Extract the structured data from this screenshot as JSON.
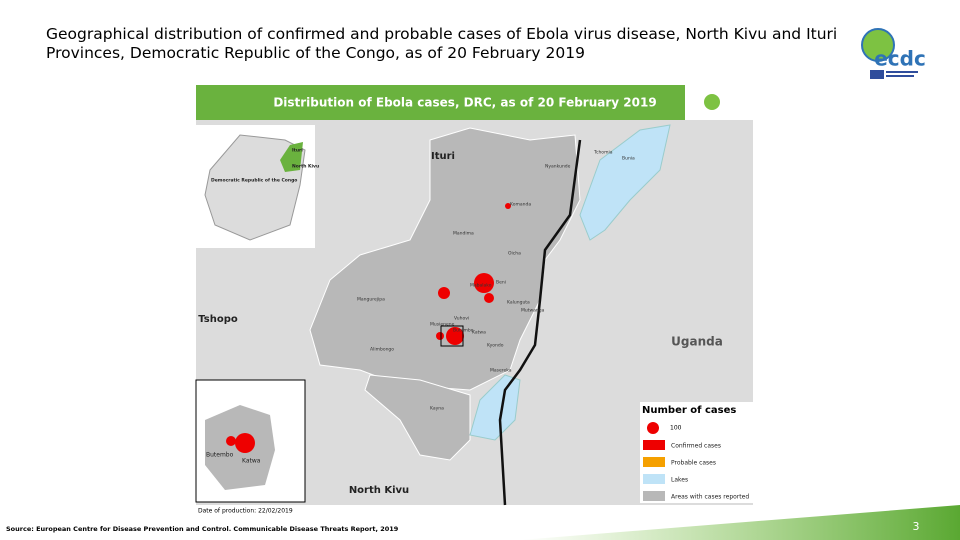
{
  "slide": {
    "title": "Geographical distribution of confirmed and probable cases of Ebola virus disease, North Kivu and Ituri Provinces, Democratic Republic of the Congo, as of 20 February 2019",
    "logo": "ecdc",
    "source": "Source: European Centre for Disease Prevention and Control. Communicable Disease Threats Report, 2019",
    "page_number": "3"
  },
  "map": {
    "header": "Distribution of Ebola cases, DRC, as of 20 February 2019",
    "regions": [
      "Ituri",
      "Tshopo",
      "Uganda",
      "North Kivu"
    ],
    "places": [
      "Tchomia",
      "Nyankunde",
      "Bunia",
      "Komanda",
      "Mandima",
      "Oicha",
      "Mabalako",
      "Beni",
      "Kalunguta",
      "Mutwanga",
      "Mangurejipa",
      "Vuhovi",
      "Musienene",
      "Butembo",
      "Katwa",
      "Kyondo",
      "Alimbongo",
      "Masereka",
      "Kayna"
    ],
    "overview": [
      "Ituri",
      "North Kivu",
      "Democratic Republic of the Congo"
    ],
    "inset": [
      "Butembo",
      "Katwa"
    ],
    "production_date": "Date of production: 22/02/2019",
    "legend": {
      "title": "Number of cases",
      "size": "100",
      "items": [
        "Confirmed cases",
        "Probable cases",
        "Lakes",
        "Areas with cases reported"
      ]
    }
  }
}
